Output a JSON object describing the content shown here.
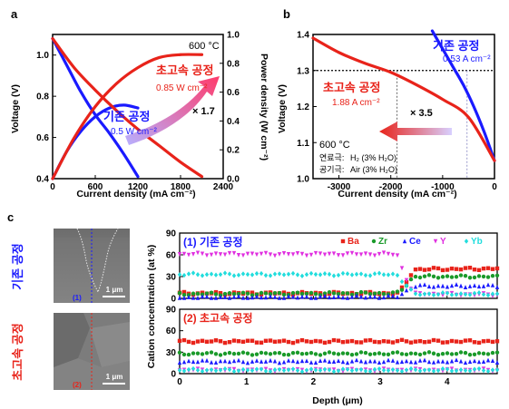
{
  "panel_labels": {
    "a": "a",
    "b": "b",
    "c": "c"
  },
  "colors": {
    "blue": "#1a1aff",
    "red": "#e8231a",
    "Ba": "#e8231a",
    "Zr": "#1a9a2a",
    "Ce": "#1a1aff",
    "Y": "#e030e0",
    "Yb": "#22dddd"
  },
  "chart_data": [
    {
      "panel": "a",
      "type": "line",
      "xlabel": "Current density (mA cm⁻²)",
      "ylabel": "Voltage (V)",
      "y2label": "Power density (W cm⁻²)",
      "xlim": [
        0,
        2400
      ],
      "ylim": [
        0.4,
        1.1
      ],
      "y2lim": [
        0,
        1.0
      ],
      "x_ticks": [
        "0",
        "600",
        "1200",
        "1800",
        "2400"
      ],
      "y_ticks": [
        "0.4",
        "0.6",
        "0.8",
        "1.0"
      ],
      "y2_ticks": [
        "0.0",
        "0.2",
        "0.4",
        "0.6",
        "0.8",
        "1.0"
      ],
      "temperature": "600 °C",
      "annotation_factor": "× 1.7",
      "series": [
        {
          "name": "기존 공정",
          "sub": "0.5 W cm⁻²",
          "axis": "voltage",
          "color": "blue",
          "x": [
            0,
            200,
            400,
            600,
            800,
            1000,
            1200
          ],
          "y": [
            1.08,
            0.95,
            0.82,
            0.71,
            0.62,
            0.52,
            0.41
          ]
        },
        {
          "name": "기존 공정",
          "axis": "power",
          "color": "blue",
          "x": [
            0,
            200,
            400,
            600,
            800,
            1000,
            1200
          ],
          "y": [
            0.0,
            0.19,
            0.33,
            0.43,
            0.49,
            0.51,
            0.49
          ]
        },
        {
          "name": "초고속 공정",
          "sub": "0.85 W cm⁻²",
          "axis": "voltage",
          "color": "red",
          "x": [
            0,
            300,
            600,
            900,
            1200,
            1500,
            1800,
            2100
          ],
          "y": [
            1.08,
            0.94,
            0.83,
            0.73,
            0.64,
            0.56,
            0.48,
            0.41
          ]
        },
        {
          "name": "초고속 공정",
          "axis": "power",
          "color": "red",
          "x": [
            0,
            300,
            600,
            900,
            1200,
            1500,
            1800,
            2100
          ],
          "y": [
            0.0,
            0.28,
            0.5,
            0.66,
            0.77,
            0.84,
            0.86,
            0.86
          ]
        }
      ]
    },
    {
      "panel": "b",
      "type": "line",
      "xlabel": "Current density (mA cm⁻²)",
      "ylabel": "Voltage (V)",
      "xlim": [
        -3500,
        0
      ],
      "ylim": [
        1.0,
        1.4
      ],
      "x_ticks": [
        "-3000",
        "-2000",
        "-1000",
        "0"
      ],
      "y_ticks": [
        "1.0",
        "1.1",
        "1.2",
        "1.3",
        "1.4"
      ],
      "temperature": "600 °C",
      "annotation_factor": "× 3.5",
      "reference_voltage": 1.3,
      "gas_rows": [
        {
          "label": "연료극:",
          "value": "H₂ (3% H₂O)"
        },
        {
          "label": "공기극:",
          "value": "Air (3% H₂O)"
        }
      ],
      "series": [
        {
          "name": "기존 공정",
          "sub": "0.53 A cm⁻²",
          "color": "blue",
          "x": [
            -1200,
            -1000,
            -800,
            -600,
            -400,
            -200,
            0
          ],
          "y": [
            1.41,
            1.36,
            1.31,
            1.26,
            1.2,
            1.13,
            1.05
          ]
        },
        {
          "name": "초고속 공정",
          "sub": "1.88 A cm⁻²",
          "color": "red",
          "x": [
            -3500,
            -3000,
            -2500,
            -2000,
            -1500,
            -1000,
            -500,
            0
          ],
          "y": [
            1.39,
            1.35,
            1.32,
            1.295,
            1.26,
            1.22,
            1.17,
            1.05
          ]
        }
      ]
    },
    {
      "panel": "c",
      "type": "scatter",
      "xlabel": "Depth (μm)",
      "ylabel": "Cation concentration (at %)",
      "xlim": [
        0,
        4.75
      ],
      "ylim": [
        0,
        90
      ],
      "x_ticks": [
        "0",
        "1",
        "2",
        "3",
        "4"
      ],
      "y_ticks": [
        "0",
        "30",
        "60",
        "90"
      ],
      "legend": [
        "Ba",
        "Zr",
        "Ce",
        "Y",
        "Yb"
      ],
      "subplots": [
        {
          "title": "(1) 기존 공정",
          "series": [
            {
              "name": "Ba",
              "x": [
                0,
                3.25,
                3.35,
                3.5,
                4.75
              ],
              "y": [
                7,
                7,
                15,
                40,
                41
              ]
            },
            {
              "name": "Zr",
              "x": [
                0,
                3.25,
                3.35,
                3.5,
                4.75
              ],
              "y": [
                6,
                7,
                14,
                30,
                30
              ]
            },
            {
              "name": "Ce",
              "x": [
                0,
                3.25,
                3.35,
                3.5,
                4.75
              ],
              "y": [
                1,
                2,
                8,
                17,
                17
              ]
            },
            {
              "name": "Y",
              "x": [
                0,
                3.25,
                3.35,
                3.5,
                4.75
              ],
              "y": [
                61,
                61,
                35,
                6,
                5
              ]
            },
            {
              "name": "Yb",
              "x": [
                0,
                3.25,
                3.35,
                3.5,
                4.75
              ],
              "y": [
                33,
                33,
                22,
                6,
                6
              ]
            }
          ]
        },
        {
          "title": "(2) 초고속 공정",
          "series": [
            {
              "name": "Ba",
              "x": [
                0,
                4.75
              ],
              "y": [
                45,
                45
              ]
            },
            {
              "name": "Zr",
              "x": [
                0,
                4.75
              ],
              "y": [
                28,
                28
              ]
            },
            {
              "name": "Ce",
              "x": [
                0,
                4.75
              ],
              "y": [
                17,
                17
              ]
            },
            {
              "name": "Y",
              "x": [
                0,
                4.75
              ],
              "y": [
                5,
                5
              ]
            },
            {
              "name": "Yb",
              "x": [
                0,
                4.75
              ],
              "y": [
                5,
                5
              ]
            }
          ]
        }
      ]
    }
  ],
  "micrographs": [
    {
      "side_label": "기존 공정",
      "index": "(1)",
      "scale": "1 μm"
    },
    {
      "side_label": "초고속 공정",
      "index": "(2)",
      "scale": "1 μm"
    }
  ]
}
